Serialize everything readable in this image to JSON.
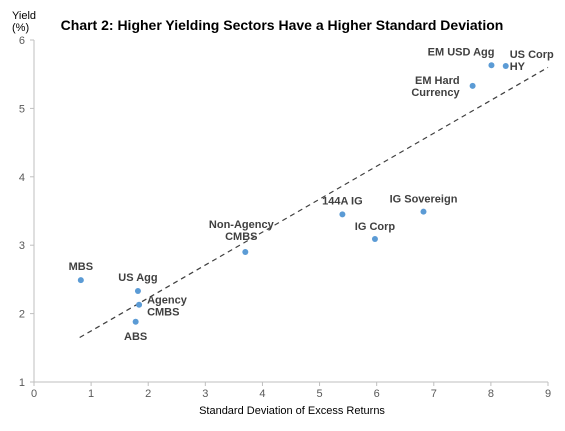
{
  "chart_data": {
    "type": "scatter",
    "title": "Chart 2: Higher Yielding Sectors Have a Higher Standard Deviation",
    "xlabel": "Standard Deviation of Excess Returns",
    "ylabel": [
      "Yield",
      "(%)"
    ],
    "xlim": [
      0,
      9
    ],
    "ylim": [
      1,
      6
    ],
    "xticks": [
      "0",
      "1",
      "2",
      "3",
      "4",
      "5",
      "6",
      "7",
      "8",
      "9"
    ],
    "yticks": [
      "1",
      "2",
      "3",
      "4",
      "5",
      "6"
    ],
    "grid": false,
    "legend": "none",
    "point_color": "#5B9BD5",
    "trendline": {
      "style": "dashed",
      "color": "#404040",
      "from": [
        0.8,
        1.65
      ],
      "to": [
        9.0,
        5.6
      ]
    },
    "points": [
      {
        "label": [
          "MBS"
        ],
        "x": 0.82,
        "y": 2.49
      },
      {
        "label": [
          "US Agg"
        ],
        "x": 1.82,
        "y": 2.33
      },
      {
        "label": [
          "Agency",
          "CMBS"
        ],
        "x": 1.84,
        "y": 2.13
      },
      {
        "label": [
          "ABS"
        ],
        "x": 1.78,
        "y": 1.88
      },
      {
        "label": [
          "Non-Agency",
          "CMBS"
        ],
        "x": 3.7,
        "y": 2.9
      },
      {
        "label": [
          "144A IG"
        ],
        "x": 5.4,
        "y": 3.45
      },
      {
        "label": [
          "IG Corp"
        ],
        "x": 5.97,
        "y": 3.09
      },
      {
        "label": [
          "IG Sovereign"
        ],
        "x": 6.82,
        "y": 3.49
      },
      {
        "label": [
          "EM Hard",
          "Currency"
        ],
        "x": 7.68,
        "y": 5.33
      },
      {
        "label": [
          "EM USD Agg"
        ],
        "x": 8.01,
        "y": 5.63
      },
      {
        "label": [
          "US Corp",
          "HY"
        ],
        "x": 8.26,
        "y": 5.62
      }
    ]
  }
}
